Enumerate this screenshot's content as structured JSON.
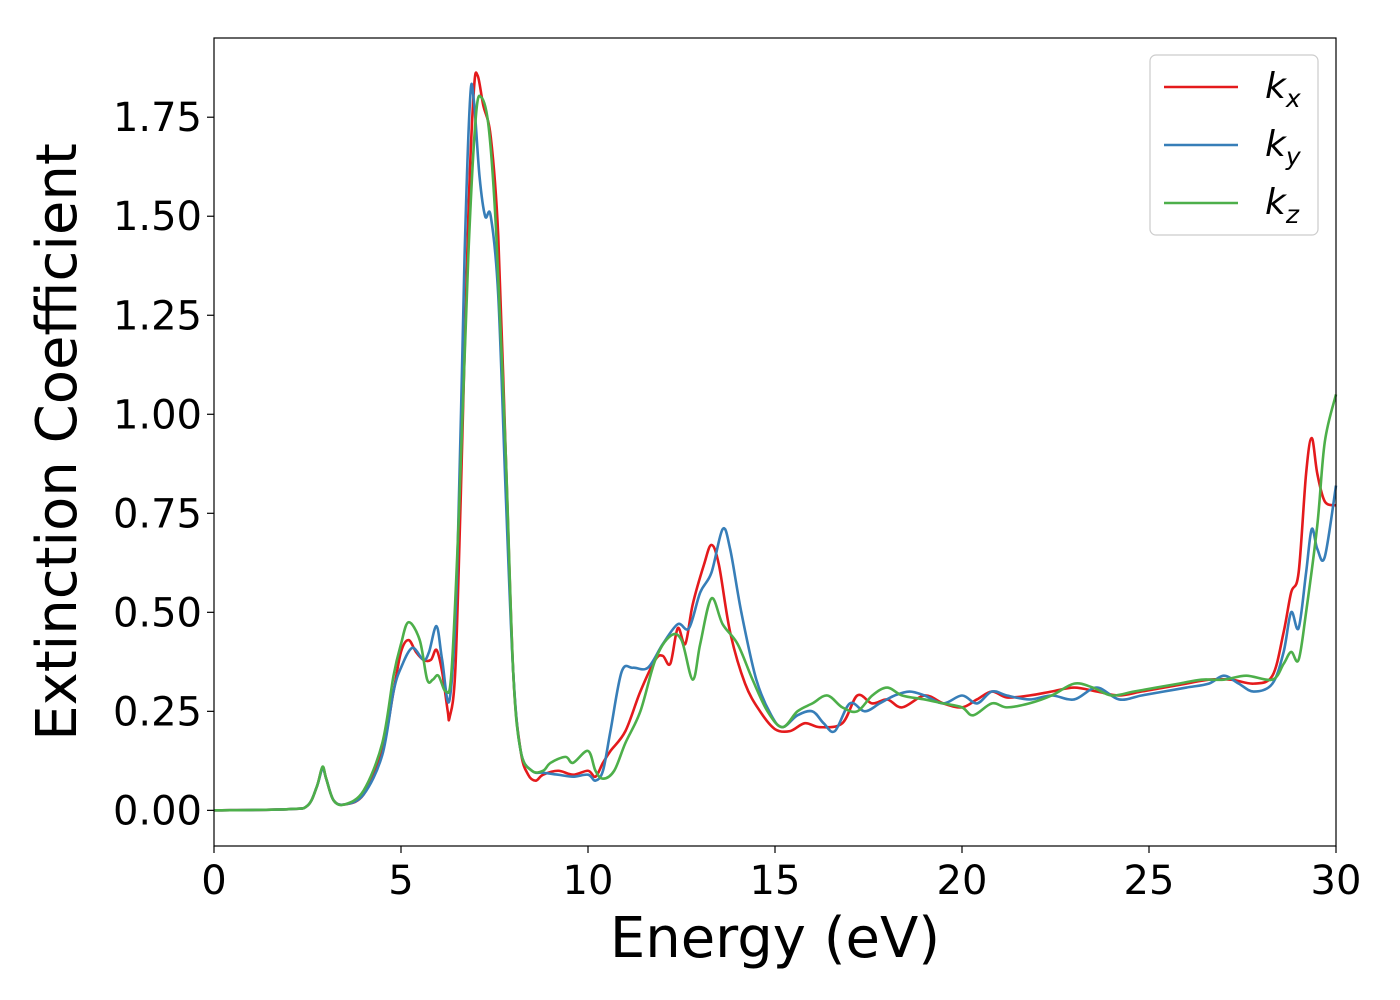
{
  "chart_data": {
    "type": "line",
    "xlabel": "Energy (eV)",
    "ylabel": "Extinction Coefficient",
    "xlim": [
      0,
      30
    ],
    "ylim": [
      -0.09,
      1.95
    ],
    "xticks": [
      0,
      5,
      10,
      15,
      20,
      25,
      30
    ],
    "xtick_labels": [
      "0",
      "5",
      "10",
      "15",
      "20",
      "25",
      "30"
    ],
    "yticks": [
      0.0,
      0.25,
      0.5,
      0.75,
      1.0,
      1.25,
      1.5,
      1.75
    ],
    "ytick_labels": [
      "0.00",
      "0.25",
      "0.50",
      "0.75",
      "1.00",
      "1.25",
      "1.50",
      "1.75"
    ],
    "grid": false,
    "legend_position": "top-right",
    "series": [
      {
        "name": "k_x",
        "label_main": "k",
        "label_sub": "x",
        "color": "#e41a1c",
        "points": [
          [
            0,
            0
          ],
          [
            2,
            0.003
          ],
          [
            2.5,
            0.012
          ],
          [
            2.75,
            0.06
          ],
          [
            2.9,
            0.108
          ],
          [
            3.0,
            0.08
          ],
          [
            3.2,
            0.025
          ],
          [
            3.5,
            0.015
          ],
          [
            4.0,
            0.04
          ],
          [
            4.5,
            0.15
          ],
          [
            4.8,
            0.3
          ],
          [
            5.0,
            0.4
          ],
          [
            5.2,
            0.43
          ],
          [
            5.4,
            0.4
          ],
          [
            5.6,
            0.38
          ],
          [
            5.8,
            0.38
          ],
          [
            5.95,
            0.405
          ],
          [
            6.1,
            0.35
          ],
          [
            6.25,
            0.25
          ],
          [
            6.3,
            0.235
          ],
          [
            6.45,
            0.35
          ],
          [
            6.6,
            0.8
          ],
          [
            6.8,
            1.5
          ],
          [
            6.95,
            1.82
          ],
          [
            7.05,
            1.855
          ],
          [
            7.2,
            1.78
          ],
          [
            7.4,
            1.7
          ],
          [
            7.6,
            1.45
          ],
          [
            7.8,
            0.9
          ],
          [
            8.0,
            0.35
          ],
          [
            8.2,
            0.15
          ],
          [
            8.4,
            0.09
          ],
          [
            8.6,
            0.075
          ],
          [
            8.8,
            0.09
          ],
          [
            9.2,
            0.1
          ],
          [
            9.6,
            0.09
          ],
          [
            10.0,
            0.1
          ],
          [
            10.2,
            0.085
          ],
          [
            10.4,
            0.12
          ],
          [
            10.6,
            0.15
          ],
          [
            11.0,
            0.2
          ],
          [
            11.4,
            0.3
          ],
          [
            11.8,
            0.38
          ],
          [
            12.0,
            0.39
          ],
          [
            12.2,
            0.37
          ],
          [
            12.4,
            0.46
          ],
          [
            12.6,
            0.42
          ],
          [
            12.8,
            0.52
          ],
          [
            13.1,
            0.62
          ],
          [
            13.3,
            0.67
          ],
          [
            13.5,
            0.62
          ],
          [
            13.8,
            0.45
          ],
          [
            14.2,
            0.32
          ],
          [
            14.6,
            0.25
          ],
          [
            15.0,
            0.205
          ],
          [
            15.4,
            0.2
          ],
          [
            15.8,
            0.22
          ],
          [
            16.2,
            0.21
          ],
          [
            16.8,
            0.22
          ],
          [
            17.2,
            0.29
          ],
          [
            17.6,
            0.27
          ],
          [
            18.0,
            0.28
          ],
          [
            18.4,
            0.26
          ],
          [
            19.0,
            0.29
          ],
          [
            19.5,
            0.27
          ],
          [
            20.0,
            0.26
          ],
          [
            20.4,
            0.28
          ],
          [
            20.8,
            0.3
          ],
          [
            21.2,
            0.285
          ],
          [
            21.8,
            0.29
          ],
          [
            22.4,
            0.3
          ],
          [
            23.0,
            0.31
          ],
          [
            23.6,
            0.3
          ],
          [
            24.2,
            0.29
          ],
          [
            24.8,
            0.3
          ],
          [
            25.4,
            0.31
          ],
          [
            26.0,
            0.32
          ],
          [
            26.6,
            0.33
          ],
          [
            27.2,
            0.33
          ],
          [
            27.8,
            0.32
          ],
          [
            28.3,
            0.34
          ],
          [
            28.6,
            0.45
          ],
          [
            28.8,
            0.55
          ],
          [
            29.0,
            0.6
          ],
          [
            29.2,
            0.85
          ],
          [
            29.35,
            0.94
          ],
          [
            29.5,
            0.85
          ],
          [
            29.7,
            0.78
          ],
          [
            30.0,
            0.77
          ]
        ]
      },
      {
        "name": "k_y",
        "label_main": "k",
        "label_sub": "y",
        "color": "#377eb8",
        "points": [
          [
            0,
            0
          ],
          [
            2,
            0.003
          ],
          [
            2.5,
            0.012
          ],
          [
            2.75,
            0.06
          ],
          [
            2.9,
            0.105
          ],
          [
            3.0,
            0.08
          ],
          [
            3.2,
            0.025
          ],
          [
            3.5,
            0.015
          ],
          [
            4.0,
            0.04
          ],
          [
            4.5,
            0.14
          ],
          [
            4.8,
            0.3
          ],
          [
            5.0,
            0.36
          ],
          [
            5.3,
            0.41
          ],
          [
            5.6,
            0.38
          ],
          [
            5.75,
            0.4
          ],
          [
            5.95,
            0.465
          ],
          [
            6.1,
            0.38
          ],
          [
            6.3,
            0.28
          ],
          [
            6.5,
            0.6
          ],
          [
            6.7,
            1.4
          ],
          [
            6.85,
            1.8
          ],
          [
            6.95,
            1.79
          ],
          [
            7.1,
            1.6
          ],
          [
            7.25,
            1.5
          ],
          [
            7.4,
            1.5
          ],
          [
            7.6,
            1.3
          ],
          [
            7.8,
            0.8
          ],
          [
            8.0,
            0.35
          ],
          [
            8.2,
            0.15
          ],
          [
            8.5,
            0.1
          ],
          [
            8.8,
            0.095
          ],
          [
            9.2,
            0.09
          ],
          [
            9.6,
            0.085
          ],
          [
            10.0,
            0.09
          ],
          [
            10.2,
            0.075
          ],
          [
            10.4,
            0.1
          ],
          [
            10.6,
            0.2
          ],
          [
            10.9,
            0.35
          ],
          [
            11.2,
            0.36
          ],
          [
            11.6,
            0.36
          ],
          [
            12.0,
            0.42
          ],
          [
            12.4,
            0.47
          ],
          [
            12.7,
            0.46
          ],
          [
            13.0,
            0.55
          ],
          [
            13.3,
            0.6
          ],
          [
            13.6,
            0.71
          ],
          [
            13.8,
            0.66
          ],
          [
            14.1,
            0.5
          ],
          [
            14.5,
            0.33
          ],
          [
            14.9,
            0.24
          ],
          [
            15.2,
            0.21
          ],
          [
            15.6,
            0.24
          ],
          [
            16.0,
            0.25
          ],
          [
            16.3,
            0.22
          ],
          [
            16.6,
            0.2
          ],
          [
            17.0,
            0.27
          ],
          [
            17.4,
            0.25
          ],
          [
            17.8,
            0.27
          ],
          [
            18.2,
            0.29
          ],
          [
            18.6,
            0.3
          ],
          [
            19.0,
            0.29
          ],
          [
            19.5,
            0.27
          ],
          [
            20.0,
            0.29
          ],
          [
            20.4,
            0.27
          ],
          [
            20.8,
            0.3
          ],
          [
            21.2,
            0.29
          ],
          [
            21.8,
            0.28
          ],
          [
            22.4,
            0.29
          ],
          [
            23.0,
            0.28
          ],
          [
            23.6,
            0.31
          ],
          [
            24.2,
            0.28
          ],
          [
            24.8,
            0.29
          ],
          [
            25.4,
            0.3
          ],
          [
            26.0,
            0.31
          ],
          [
            26.6,
            0.32
          ],
          [
            27.0,
            0.34
          ],
          [
            27.4,
            0.32
          ],
          [
            27.8,
            0.3
          ],
          [
            28.3,
            0.32
          ],
          [
            28.6,
            0.4
          ],
          [
            28.8,
            0.5
          ],
          [
            29.0,
            0.46
          ],
          [
            29.2,
            0.6
          ],
          [
            29.35,
            0.71
          ],
          [
            29.5,
            0.66
          ],
          [
            29.7,
            0.64
          ],
          [
            30.0,
            0.82
          ]
        ]
      },
      {
        "name": "k_z",
        "label_main": "k",
        "label_sub": "z",
        "color": "#4daf4a",
        "points": [
          [
            0,
            0
          ],
          [
            2,
            0.003
          ],
          [
            2.5,
            0.012
          ],
          [
            2.75,
            0.06
          ],
          [
            2.9,
            0.11
          ],
          [
            3.0,
            0.08
          ],
          [
            3.2,
            0.025
          ],
          [
            3.5,
            0.015
          ],
          [
            4.0,
            0.05
          ],
          [
            4.5,
            0.17
          ],
          [
            4.8,
            0.34
          ],
          [
            5.0,
            0.42
          ],
          [
            5.2,
            0.475
          ],
          [
            5.5,
            0.43
          ],
          [
            5.7,
            0.33
          ],
          [
            5.85,
            0.33
          ],
          [
            6.0,
            0.34
          ],
          [
            6.2,
            0.3
          ],
          [
            6.35,
            0.35
          ],
          [
            6.55,
            0.75
          ],
          [
            6.8,
            1.4
          ],
          [
            7.0,
            1.75
          ],
          [
            7.15,
            1.8
          ],
          [
            7.35,
            1.72
          ],
          [
            7.55,
            1.45
          ],
          [
            7.8,
            0.9
          ],
          [
            8.0,
            0.35
          ],
          [
            8.2,
            0.15
          ],
          [
            8.5,
            0.1
          ],
          [
            8.8,
            0.1
          ],
          [
            9.0,
            0.12
          ],
          [
            9.4,
            0.135
          ],
          [
            9.6,
            0.12
          ],
          [
            10.0,
            0.15
          ],
          [
            10.2,
            0.1
          ],
          [
            10.4,
            0.08
          ],
          [
            10.7,
            0.1
          ],
          [
            11.0,
            0.17
          ],
          [
            11.4,
            0.25
          ],
          [
            11.8,
            0.38
          ],
          [
            12.2,
            0.44
          ],
          [
            12.5,
            0.43
          ],
          [
            12.8,
            0.33
          ],
          [
            13.0,
            0.42
          ],
          [
            13.3,
            0.535
          ],
          [
            13.6,
            0.47
          ],
          [
            14.0,
            0.42
          ],
          [
            14.4,
            0.33
          ],
          [
            14.8,
            0.25
          ],
          [
            15.2,
            0.21
          ],
          [
            15.6,
            0.25
          ],
          [
            16.0,
            0.27
          ],
          [
            16.4,
            0.29
          ],
          [
            16.8,
            0.26
          ],
          [
            17.2,
            0.25
          ],
          [
            17.6,
            0.29
          ],
          [
            18.0,
            0.31
          ],
          [
            18.4,
            0.29
          ],
          [
            19.0,
            0.28
          ],
          [
            19.5,
            0.27
          ],
          [
            20.0,
            0.26
          ],
          [
            20.3,
            0.24
          ],
          [
            20.8,
            0.27
          ],
          [
            21.2,
            0.26
          ],
          [
            21.8,
            0.27
          ],
          [
            22.4,
            0.29
          ],
          [
            23.0,
            0.32
          ],
          [
            23.5,
            0.31
          ],
          [
            24.0,
            0.29
          ],
          [
            24.6,
            0.3
          ],
          [
            25.2,
            0.31
          ],
          [
            25.8,
            0.32
          ],
          [
            26.4,
            0.33
          ],
          [
            27.0,
            0.33
          ],
          [
            27.6,
            0.34
          ],
          [
            28.3,
            0.33
          ],
          [
            28.6,
            0.37
          ],
          [
            28.8,
            0.4
          ],
          [
            29.0,
            0.38
          ],
          [
            29.2,
            0.5
          ],
          [
            29.5,
            0.72
          ],
          [
            29.7,
            0.93
          ],
          [
            30.0,
            1.05
          ]
        ]
      }
    ]
  }
}
